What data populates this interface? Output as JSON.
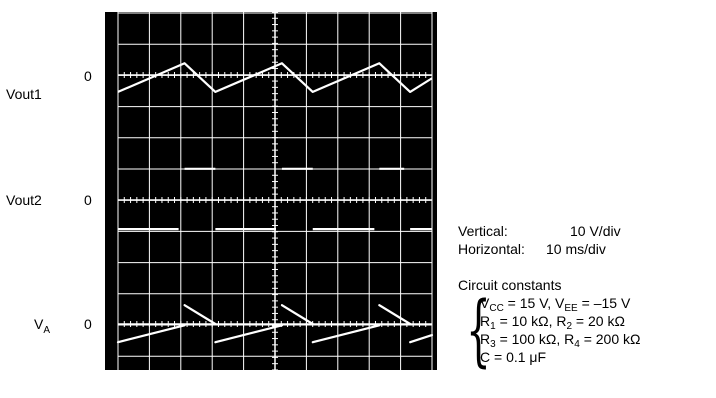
{
  "traces": {
    "vout1": {
      "label": "Vout1",
      "zero_label": "0",
      "type": "triangle",
      "points": [
        [
          0,
          -2.6
        ],
        [
          6.7,
          1.8
        ],
        [
          9.8,
          -2.6
        ],
        [
          16.5,
          1.8
        ],
        [
          19.6,
          -2.6
        ],
        [
          26.3,
          1.8
        ],
        [
          29.4,
          -2.6
        ],
        [
          31.6,
          -0.5
        ]
      ]
    },
    "vout2": {
      "label": "Vout2",
      "zero_label": "0",
      "type": "square",
      "high_level_div": 1.5,
      "low_level_div": -1.4,
      "high_segments": [
        [
          6.7,
          9.8
        ],
        [
          16.5,
          19.6
        ],
        [
          26.3,
          28.8
        ]
      ],
      "low_segments": [
        [
          0,
          6.1
        ],
        [
          9.8,
          15.9
        ],
        [
          19.6,
          25.8
        ],
        [
          29.4,
          31.6
        ]
      ]
    },
    "va": {
      "label": "V",
      "label_sub": "A",
      "zero_label": "0",
      "type": "sawtooth",
      "segments": [
        [
          [
            0,
            -2.8
          ],
          [
            6.7,
            -0.2
          ]
        ],
        [
          [
            6.7,
            2.9
          ],
          [
            9.8,
            0
          ]
        ],
        [
          [
            9.8,
            -2.8
          ],
          [
            16.5,
            -0.2
          ]
        ],
        [
          [
            16.5,
            2.9
          ],
          [
            19.6,
            0
          ]
        ],
        [
          [
            19.6,
            -2.8
          ],
          [
            26.3,
            -0.2
          ]
        ],
        [
          [
            26.3,
            2.9
          ],
          [
            29.4,
            0
          ]
        ],
        [
          [
            29.4,
            -2.8
          ],
          [
            31.6,
            -1.7
          ]
        ]
      ]
    }
  },
  "settings": {
    "vertical_label": "Vertical:",
    "vertical_value": "10 V/div",
    "horizontal_label": "Horizontal:",
    "horizontal_value": "10 ms/div"
  },
  "constants": {
    "title": "Circuit constants",
    "line1": {
      "a": "V",
      "a_sub": "CC",
      "a_rest": " = 15 V,  V",
      "b_sub": "EE",
      "b_rest": " = –15 V"
    },
    "line2": {
      "a": "R",
      "a_sub": "1",
      "a_rest": " = 10 kΩ,  R",
      "b_sub": "2",
      "b_rest": " = 20 kΩ"
    },
    "line3": {
      "a": "R",
      "a_sub": "3",
      "a_rest": " = 100 kΩ, R",
      "b_sub": "4",
      "b_rest": " = 200 kΩ"
    },
    "line4": {
      "a": "C = 0.1 μF"
    }
  },
  "chart_data": {
    "type": "line",
    "grid": true,
    "x_unit": "div",
    "y_unit": "div",
    "xlim": [
      0,
      10
    ],
    "series": [
      {
        "name": "Vout1",
        "values_ref": "traces.vout1.points"
      },
      {
        "name": "Vout2",
        "values_ref": "traces.vout2"
      },
      {
        "name": "VA",
        "values_ref": "traces.va.segments"
      }
    ],
    "colors": {
      "screen": "#000000",
      "grid": "#ffffff",
      "trace": "#ffffff"
    }
  }
}
